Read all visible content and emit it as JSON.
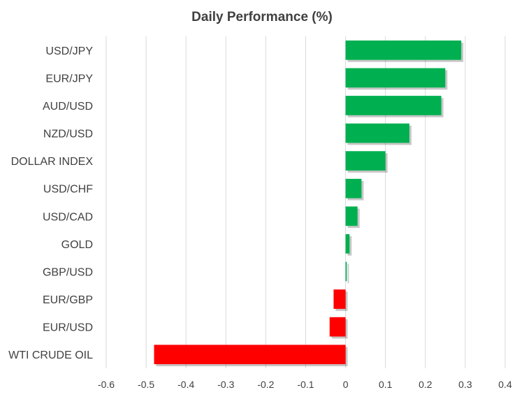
{
  "chart_data": {
    "type": "bar",
    "orientation": "horizontal",
    "title": "Daily Performance (%)",
    "xlabel": "",
    "ylabel": "",
    "xlim": [
      -0.6,
      0.4
    ],
    "xticks": [
      "-0.6",
      "-0.5",
      "-0.4",
      "-0.3",
      "-0.2",
      "-0.1",
      "0",
      "0.1",
      "0.2",
      "0.3",
      "0.4"
    ],
    "grid": "vertical",
    "legend": "none",
    "categories": [
      "USD/JPY",
      "EUR/JPY",
      "AUD/USD",
      "NZD/USD",
      "DOLLAR INDEX",
      "USD/CHF",
      "USD/CAD",
      "GOLD",
      "GBP/USD",
      "EUR/GBP",
      "EUR/USD",
      "WTI CRUDE OIL"
    ],
    "values": [
      0.29,
      0.25,
      0.24,
      0.16,
      0.1,
      0.04,
      0.03,
      0.01,
      0.003,
      -0.03,
      -0.04,
      -0.48
    ],
    "colors": {
      "positive": "#00b050",
      "negative": "#ff0000"
    }
  }
}
